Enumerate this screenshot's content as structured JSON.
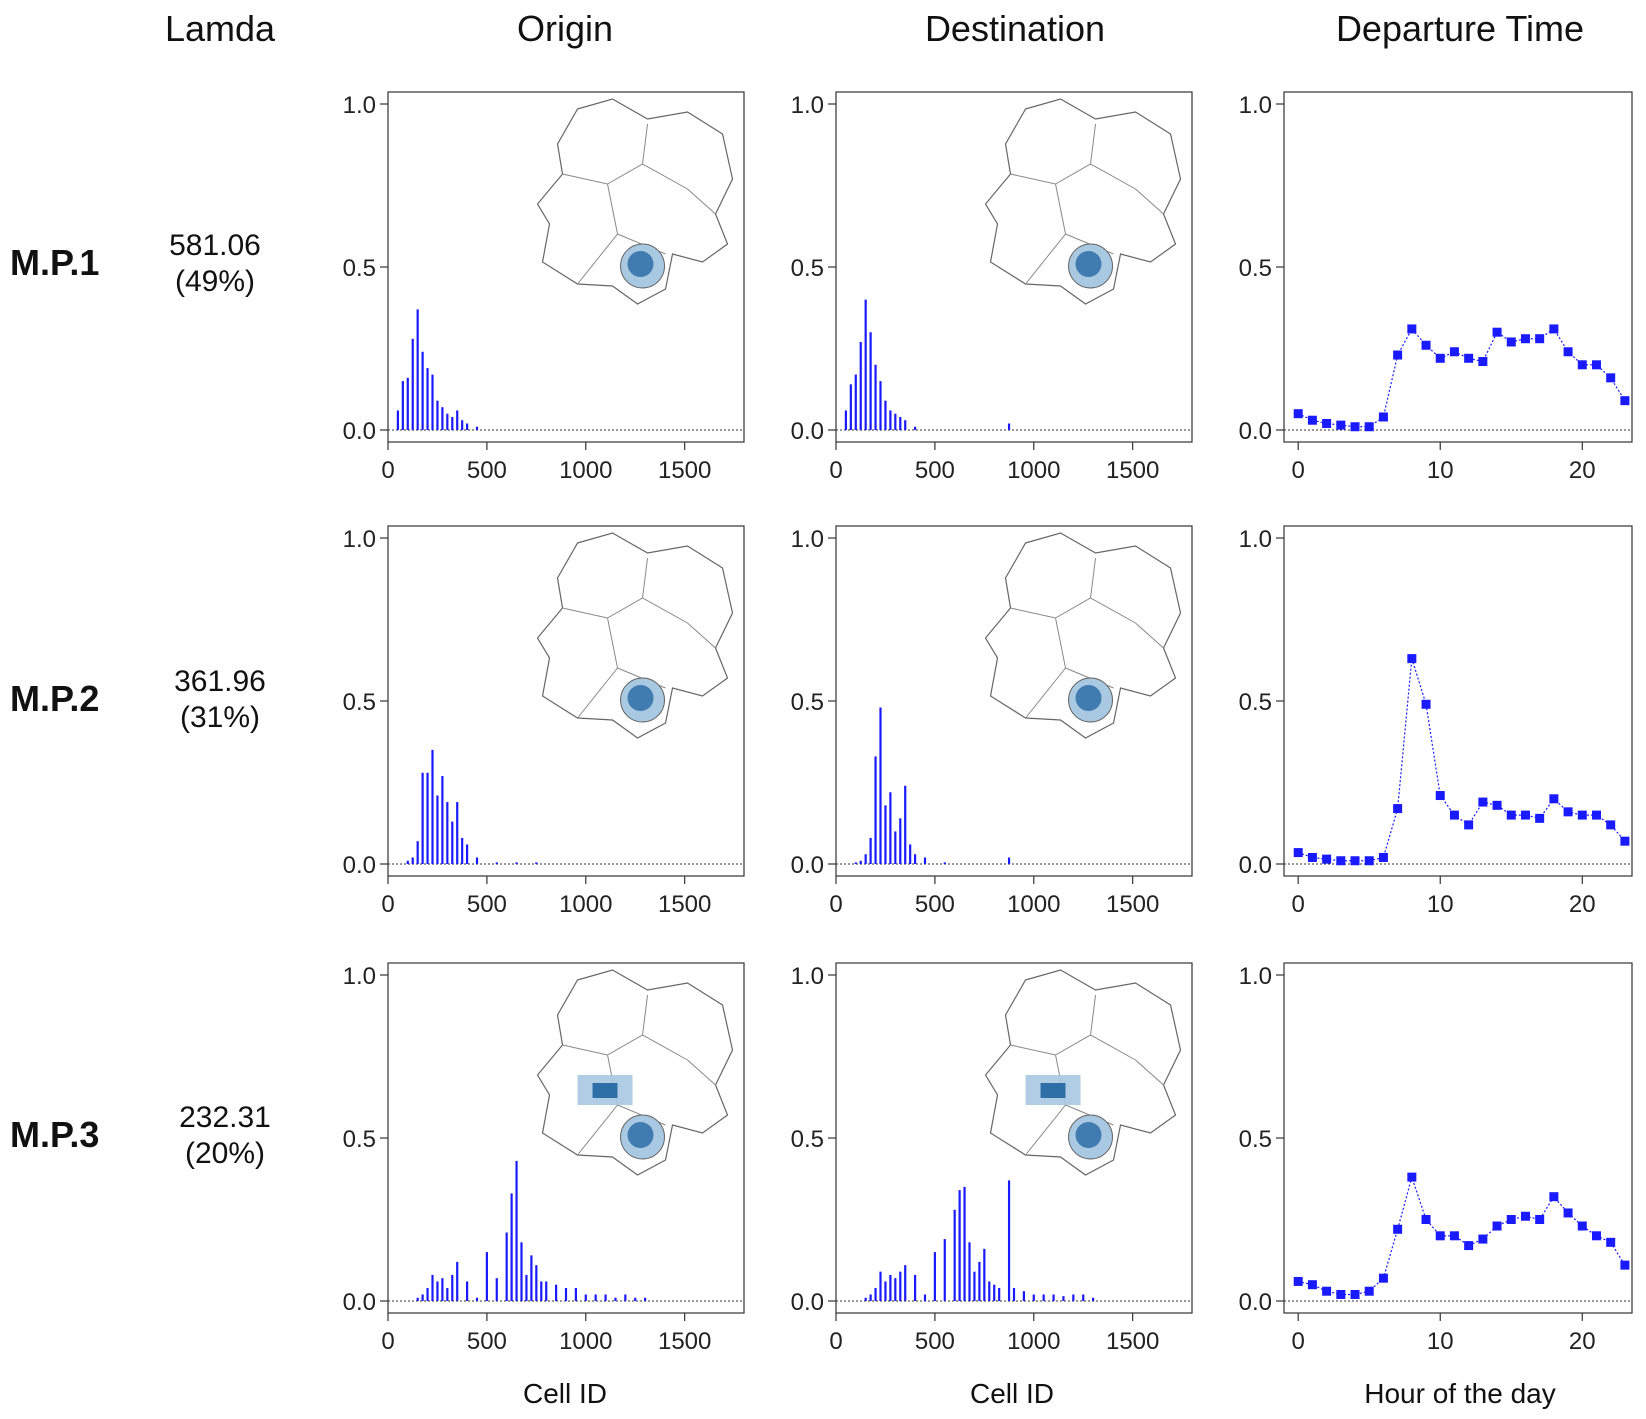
{
  "headers": {
    "lamda": "Lamda",
    "origin": "Origin",
    "destination": "Destination",
    "departure": "Departure Time"
  },
  "x_titles": {
    "origin": "Cell ID",
    "destination": "Cell ID",
    "departure": "Hour of the day"
  },
  "rows": [
    {
      "label": "M.P.1",
      "lamda_value": "581.06",
      "lamda_share": "(49%)"
    },
    {
      "label": "M.P.2",
      "lamda_value": "361.96",
      "lamda_share": "(31%)"
    },
    {
      "label": "M.P.3",
      "lamda_value": "232.31",
      "lamda_share": "(20%)"
    }
  ],
  "colors": {
    "series": "#1a1aff",
    "map_fill": "#2f6fa8",
    "map_light": "#a9c8e2"
  },
  "chart_data": [
    {
      "type": "bar",
      "row": "M.P.1",
      "column": "Origin",
      "xlabel": "Cell ID",
      "ylim": [
        0,
        1
      ],
      "xlim": [
        0,
        1800
      ],
      "xticks": [
        0,
        500,
        1000,
        1500
      ],
      "yticks": [
        "0.0",
        "0.5",
        "1.0"
      ],
      "x": [
        50,
        75,
        100,
        125,
        150,
        175,
        200,
        225,
        250,
        275,
        300,
        325,
        350,
        375,
        400,
        450
      ],
      "values": [
        0.06,
        0.15,
        0.16,
        0.28,
        0.37,
        0.24,
        0.19,
        0.17,
        0.09,
        0.07,
        0.05,
        0.04,
        0.06,
        0.03,
        0.02,
        0.01
      ]
    },
    {
      "type": "bar",
      "row": "M.P.1",
      "column": "Destination",
      "xlabel": "Cell ID",
      "ylim": [
        0,
        1
      ],
      "xlim": [
        0,
        1800
      ],
      "xticks": [
        0,
        500,
        1000,
        1500
      ],
      "yticks": [
        "0.0",
        "0.5",
        "1.0"
      ],
      "x": [
        50,
        75,
        100,
        125,
        150,
        175,
        200,
        225,
        250,
        275,
        300,
        325,
        350,
        400,
        875
      ],
      "values": [
        0.06,
        0.14,
        0.17,
        0.27,
        0.4,
        0.3,
        0.2,
        0.15,
        0.09,
        0.06,
        0.05,
        0.04,
        0.03,
        0.01,
        0.02
      ]
    },
    {
      "type": "line",
      "row": "M.P.1",
      "column": "Departure Time",
      "xlabel": "Hour of the day",
      "ylim": [
        0,
        1
      ],
      "xlim": [
        -1,
        23.5
      ],
      "xticks": [
        0,
        10,
        20
      ],
      "yticks": [
        "0.0",
        "0.5",
        "1.0"
      ],
      "x": [
        0,
        1,
        2,
        3,
        4,
        5,
        6,
        7,
        8,
        9,
        10,
        11,
        12,
        13,
        14,
        15,
        16,
        17,
        18,
        19,
        20,
        21,
        22,
        23
      ],
      "values": [
        0.05,
        0.03,
        0.02,
        0.015,
        0.01,
        0.01,
        0.04,
        0.23,
        0.31,
        0.26,
        0.22,
        0.24,
        0.22,
        0.21,
        0.3,
        0.27,
        0.28,
        0.28,
        0.31,
        0.24,
        0.2,
        0.2,
        0.16,
        0.09
      ]
    },
    {
      "type": "bar",
      "row": "M.P.2",
      "column": "Origin",
      "xlabel": "Cell ID",
      "ylim": [
        0,
        1
      ],
      "xlim": [
        0,
        1800
      ],
      "xticks": [
        0,
        500,
        1000,
        1500
      ],
      "yticks": [
        "0.0",
        "0.5",
        "1.0"
      ],
      "x": [
        100,
        125,
        150,
        175,
        200,
        225,
        250,
        275,
        300,
        325,
        350,
        375,
        400,
        450,
        550,
        650,
        750
      ],
      "values": [
        0.01,
        0.02,
        0.07,
        0.28,
        0.28,
        0.35,
        0.21,
        0.27,
        0.19,
        0.13,
        0.19,
        0.08,
        0.06,
        0.02,
        0.005,
        0.005,
        0.005
      ]
    },
    {
      "type": "bar",
      "row": "M.P.2",
      "column": "Destination",
      "xlabel": "Cell ID",
      "ylim": [
        0,
        1
      ],
      "xlim": [
        0,
        1800
      ],
      "xticks": [
        0,
        500,
        1000,
        1500
      ],
      "yticks": [
        "0.0",
        "0.5",
        "1.0"
      ],
      "x": [
        100,
        125,
        150,
        175,
        200,
        225,
        250,
        275,
        300,
        325,
        350,
        375,
        400,
        450,
        550,
        875
      ],
      "values": [
        0.005,
        0.01,
        0.03,
        0.08,
        0.33,
        0.48,
        0.18,
        0.22,
        0.1,
        0.14,
        0.24,
        0.06,
        0.03,
        0.02,
        0.005,
        0.02
      ]
    },
    {
      "type": "line",
      "row": "M.P.2",
      "column": "Departure Time",
      "xlabel": "Hour of the day",
      "ylim": [
        0,
        1
      ],
      "xlim": [
        -1,
        23.5
      ],
      "xticks": [
        0,
        10,
        20
      ],
      "yticks": [
        "0.0",
        "0.5",
        "1.0"
      ],
      "x": [
        0,
        1,
        2,
        3,
        4,
        5,
        6,
        7,
        8,
        9,
        10,
        11,
        12,
        13,
        14,
        15,
        16,
        17,
        18,
        19,
        20,
        21,
        22,
        23
      ],
      "values": [
        0.035,
        0.02,
        0.015,
        0.01,
        0.01,
        0.01,
        0.02,
        0.17,
        0.63,
        0.49,
        0.21,
        0.15,
        0.12,
        0.19,
        0.18,
        0.15,
        0.15,
        0.14,
        0.2,
        0.16,
        0.15,
        0.15,
        0.12,
        0.07
      ]
    },
    {
      "type": "bar",
      "row": "M.P.3",
      "column": "Origin",
      "xlabel": "Cell ID",
      "ylim": [
        0,
        1
      ],
      "xlim": [
        0,
        1800
      ],
      "xticks": [
        0,
        500,
        1000,
        1500
      ],
      "yticks": [
        "0.0",
        "0.5",
        "1.0"
      ],
      "x": [
        150,
        175,
        200,
        225,
        250,
        275,
        300,
        325,
        350,
        400,
        450,
        500,
        550,
        600,
        625,
        650,
        675,
        700,
        725,
        750,
        775,
        800,
        850,
        900,
        950,
        1000,
        1050,
        1100,
        1150,
        1200,
        1250,
        1300
      ],
      "values": [
        0.01,
        0.02,
        0.04,
        0.08,
        0.06,
        0.07,
        0.04,
        0.08,
        0.12,
        0.06,
        0.01,
        0.15,
        0.07,
        0.21,
        0.33,
        0.43,
        0.18,
        0.08,
        0.14,
        0.11,
        0.06,
        0.06,
        0.05,
        0.04,
        0.04,
        0.02,
        0.02,
        0.02,
        0.01,
        0.02,
        0.01,
        0.01
      ]
    },
    {
      "type": "bar",
      "row": "M.P.3",
      "column": "Destination",
      "xlabel": "Cell ID",
      "ylim": [
        0,
        1
      ],
      "xlim": [
        0,
        1800
      ],
      "xticks": [
        0,
        500,
        1000,
        1500
      ],
      "yticks": [
        "0.0",
        "0.5",
        "1.0"
      ],
      "x": [
        150,
        175,
        200,
        225,
        250,
        275,
        300,
        325,
        350,
        400,
        450,
        500,
        550,
        600,
        625,
        650,
        675,
        700,
        725,
        750,
        775,
        800,
        825,
        875,
        900,
        950,
        1000,
        1050,
        1100,
        1150,
        1200,
        1250,
        1300
      ],
      "values": [
        0.01,
        0.02,
        0.04,
        0.09,
        0.06,
        0.08,
        0.07,
        0.09,
        0.11,
        0.08,
        0.02,
        0.15,
        0.19,
        0.28,
        0.34,
        0.35,
        0.18,
        0.09,
        0.12,
        0.16,
        0.06,
        0.05,
        0.04,
        0.37,
        0.04,
        0.03,
        0.02,
        0.02,
        0.02,
        0.015,
        0.02,
        0.02,
        0.01
      ]
    },
    {
      "type": "line",
      "row": "M.P.3",
      "column": "Departure Time",
      "xlabel": "Hour of the day",
      "ylim": [
        0,
        1
      ],
      "xlim": [
        -1,
        23.5
      ],
      "xticks": [
        0,
        10,
        20
      ],
      "yticks": [
        "0.0",
        "0.5",
        "1.0"
      ],
      "x": [
        0,
        1,
        2,
        3,
        4,
        5,
        6,
        7,
        8,
        9,
        10,
        11,
        12,
        13,
        14,
        15,
        16,
        17,
        18,
        19,
        20,
        21,
        22,
        23
      ],
      "values": [
        0.06,
        0.05,
        0.03,
        0.02,
        0.02,
        0.03,
        0.07,
        0.22,
        0.38,
        0.25,
        0.2,
        0.2,
        0.17,
        0.19,
        0.23,
        0.25,
        0.26,
        0.25,
        0.32,
        0.27,
        0.23,
        0.2,
        0.18,
        0.11
      ]
    }
  ]
}
